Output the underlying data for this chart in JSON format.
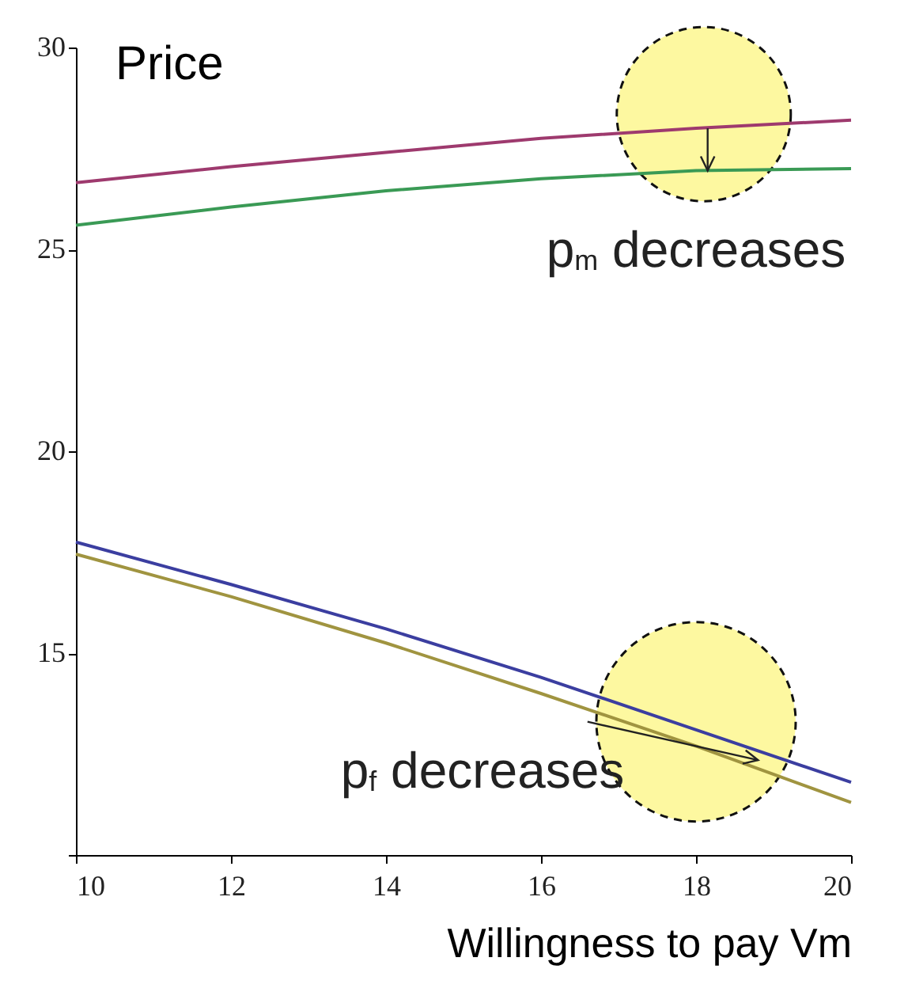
{
  "chart_data": {
    "type": "line",
    "title": "Price",
    "xlabel": "Willingness to pay Vm",
    "x": [
      10,
      12,
      14,
      16,
      18,
      20
    ],
    "series": [
      {
        "color": "#9e3a6e",
        "values": [
          26.65,
          27.05,
          27.4,
          27.75,
          28.0,
          28.2
        ]
      },
      {
        "color": "#3a9a55",
        "values": [
          25.6,
          26.05,
          26.45,
          26.75,
          26.95,
          27.0
        ]
      },
      {
        "color": "#3b3ea0",
        "values": [
          17.75,
          16.7,
          15.6,
          14.4,
          13.1,
          11.8
        ]
      },
      {
        "color": "#a09440",
        "values": [
          17.45,
          16.4,
          15.25,
          14.0,
          12.7,
          11.3
        ]
      }
    ],
    "xlim": [
      10,
      20
    ],
    "xticks": [
      10,
      12,
      14,
      16,
      18,
      20
    ],
    "ylim": [
      10,
      30
    ],
    "yticks": [
      {
        "value": 10,
        "label": null
      },
      15,
      20,
      25,
      30
    ],
    "grid": false,
    "annotations": [
      "p$_{m}$ decreases",
      "p$_{f}$ decreases"
    ]
  }
}
